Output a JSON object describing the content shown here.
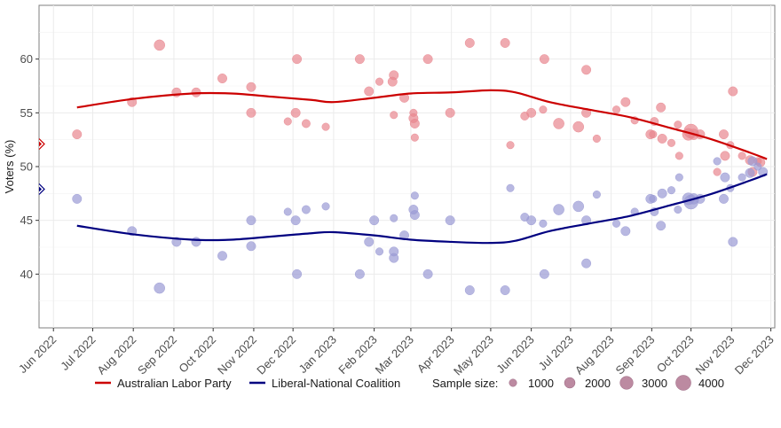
{
  "chart_data": {
    "type": "scatter",
    "title": "",
    "xlabel": "",
    "ylabel": "Voters (%)",
    "ylim": [
      35,
      65
    ],
    "xlim": [
      "2022-05-21",
      "2023-12-04"
    ],
    "grid": true,
    "y_ticks": [
      40,
      45,
      50,
      55,
      60
    ],
    "x_ticks": [
      {
        "date": "2022-06-01",
        "label": "Jun 2022"
      },
      {
        "date": "2022-07-01",
        "label": "Jul 2022"
      },
      {
        "date": "2022-08-01",
        "label": "Aug 2022"
      },
      {
        "date": "2022-09-01",
        "label": "Sep 2022"
      },
      {
        "date": "2022-10-01",
        "label": "Oct 2022"
      },
      {
        "date": "2022-11-01",
        "label": "Nov 2022"
      },
      {
        "date": "2022-12-01",
        "label": "Dec 2022"
      },
      {
        "date": "2023-01-01",
        "label": "Jan 2023"
      },
      {
        "date": "2023-02-01",
        "label": "Feb 2023"
      },
      {
        "date": "2023-03-01",
        "label": "Mar 2023"
      },
      {
        "date": "2023-04-01",
        "label": "Apr 2023"
      },
      {
        "date": "2023-05-01",
        "label": "May 2023"
      },
      {
        "date": "2023-06-01",
        "label": "Jun 2023"
      },
      {
        "date": "2023-07-01",
        "label": "Jul 2023"
      },
      {
        "date": "2023-08-01",
        "label": "Aug 2023"
      },
      {
        "date": "2023-09-01",
        "label": "Sep 2023"
      },
      {
        "date": "2023-10-01",
        "label": "Oct 2023"
      },
      {
        "date": "2023-11-01",
        "label": "Nov 2023"
      },
      {
        "date": "2023-12-01",
        "label": "Dec 2023"
      }
    ],
    "election_result": [
      {
        "series": "Australian Labor Party",
        "value": 52.1
      },
      {
        "series": "Liberal-National Coalition",
        "value": 47.9
      }
    ],
    "series": [
      {
        "name": "Australian Labor Party",
        "color": "#cc0000",
        "point_color": "#e8868f",
        "points": [
          {
            "date": "2022-06-19",
            "value": 53.0,
            "n": 1500
          },
          {
            "date": "2022-07-31",
            "value": 56.0,
            "n": 1500
          },
          {
            "date": "2022-08-21",
            "value": 61.3,
            "n": 2000
          },
          {
            "date": "2022-09-03",
            "value": 56.9,
            "n": 1500
          },
          {
            "date": "2022-09-18",
            "value": 56.9,
            "n": 1500
          },
          {
            "date": "2022-10-08",
            "value": 58.2,
            "n": 1500
          },
          {
            "date": "2022-10-30",
            "value": 57.4,
            "n": 1500
          },
          {
            "date": "2022-10-30",
            "value": 55.0,
            "n": 1500
          },
          {
            "date": "2022-11-27",
            "value": 54.2,
            "n": 1000
          },
          {
            "date": "2022-12-04",
            "value": 60.0,
            "n": 1500
          },
          {
            "date": "2022-12-03",
            "value": 55.0,
            "n": 1500
          },
          {
            "date": "2022-12-11",
            "value": 54.0,
            "n": 1200
          },
          {
            "date": "2022-12-26",
            "value": 53.7,
            "n": 1000
          },
          {
            "date": "2023-01-21",
            "value": 60.0,
            "n": 1500
          },
          {
            "date": "2023-01-28",
            "value": 57.0,
            "n": 1500
          },
          {
            "date": "2023-02-05",
            "value": 57.9,
            "n": 1000
          },
          {
            "date": "2023-02-16",
            "value": 58.5,
            "n": 1500
          },
          {
            "date": "2023-02-15",
            "value": 57.9,
            "n": 1500
          },
          {
            "date": "2023-02-16",
            "value": 54.8,
            "n": 1000
          },
          {
            "date": "2023-02-24",
            "value": 56.4,
            "n": 1500
          },
          {
            "date": "2023-03-03",
            "value": 55.0,
            "n": 1000
          },
          {
            "date": "2023-03-03",
            "value": 54.5,
            "n": 1500
          },
          {
            "date": "2023-03-04",
            "value": 54.0,
            "n": 1500
          },
          {
            "date": "2023-03-04",
            "value": 52.7,
            "n": 1000
          },
          {
            "date": "2023-03-14",
            "value": 60.0,
            "n": 1500
          },
          {
            "date": "2023-03-31",
            "value": 55.0,
            "n": 1500
          },
          {
            "date": "2023-04-15",
            "value": 61.5,
            "n": 1500
          },
          {
            "date": "2023-05-12",
            "value": 61.5,
            "n": 1500
          },
          {
            "date": "2023-05-16",
            "value": 52.0,
            "n": 1000
          },
          {
            "date": "2023-05-27",
            "value": 54.7,
            "n": 1200
          },
          {
            "date": "2023-06-01",
            "value": 55.0,
            "n": 1500
          },
          {
            "date": "2023-06-10",
            "value": 55.3,
            "n": 1000
          },
          {
            "date": "2023-06-11",
            "value": 60.0,
            "n": 1500
          },
          {
            "date": "2023-06-22",
            "value": 54.0,
            "n": 2000
          },
          {
            "date": "2023-07-07",
            "value": 53.7,
            "n": 2000
          },
          {
            "date": "2023-07-13",
            "value": 59.0,
            "n": 1500
          },
          {
            "date": "2023-07-13",
            "value": 55.0,
            "n": 1500
          },
          {
            "date": "2023-07-21",
            "value": 52.6,
            "n": 1000
          },
          {
            "date": "2023-08-05",
            "value": 55.3,
            "n": 1000
          },
          {
            "date": "2023-08-12",
            "value": 56.0,
            "n": 1500
          },
          {
            "date": "2023-08-19",
            "value": 54.3,
            "n": 1000
          },
          {
            "date": "2023-08-31",
            "value": 53.0,
            "n": 1500
          },
          {
            "date": "2023-09-02",
            "value": 53.0,
            "n": 1000
          },
          {
            "date": "2023-09-03",
            "value": 54.2,
            "n": 1200
          },
          {
            "date": "2023-09-08",
            "value": 55.5,
            "n": 1500
          },
          {
            "date": "2023-09-09",
            "value": 52.6,
            "n": 1500
          },
          {
            "date": "2023-09-16",
            "value": 52.2,
            "n": 1000
          },
          {
            "date": "2023-09-21",
            "value": 53.9,
            "n": 1000
          },
          {
            "date": "2023-09-22",
            "value": 51.0,
            "n": 1000
          },
          {
            "date": "2023-09-29",
            "value": 53.0,
            "n": 2500
          },
          {
            "date": "2023-10-01",
            "value": 53.3,
            "n": 3500
          },
          {
            "date": "2023-10-03",
            "value": 53.0,
            "n": 2000
          },
          {
            "date": "2023-10-08",
            "value": 53.0,
            "n": 1500
          },
          {
            "date": "2023-10-26",
            "value": 53.0,
            "n": 1500
          },
          {
            "date": "2023-11-02",
            "value": 57.0,
            "n": 1500
          },
          {
            "date": "2023-10-31",
            "value": 52.0,
            "n": 1000
          },
          {
            "date": "2023-10-27",
            "value": 51.0,
            "n": 1500
          },
          {
            "date": "2023-11-09",
            "value": 51.0,
            "n": 1000
          },
          {
            "date": "2023-11-15",
            "value": 50.6,
            "n": 1500
          },
          {
            "date": "2023-11-21",
            "value": 50.5,
            "n": 1000
          },
          {
            "date": "2023-11-23",
            "value": 50.4,
            "n": 1500
          },
          {
            "date": "2023-10-21",
            "value": 49.5,
            "n": 1000
          },
          {
            "date": "2023-11-17",
            "value": 49.5,
            "n": 1500
          }
        ],
        "trend": [
          {
            "date": "2022-06-19",
            "value": 55.5
          },
          {
            "date": "2022-08-01",
            "value": 56.3
          },
          {
            "date": "2022-09-15",
            "value": 56.8
          },
          {
            "date": "2022-10-15",
            "value": 56.8
          },
          {
            "date": "2022-11-15",
            "value": 56.5
          },
          {
            "date": "2022-12-15",
            "value": 56.2
          },
          {
            "date": "2023-01-01",
            "value": 56.0
          },
          {
            "date": "2023-02-01",
            "value": 56.4
          },
          {
            "date": "2023-03-01",
            "value": 56.8
          },
          {
            "date": "2023-04-01",
            "value": 56.9
          },
          {
            "date": "2023-05-01",
            "value": 57.1
          },
          {
            "date": "2023-05-20",
            "value": 56.9
          },
          {
            "date": "2023-06-15",
            "value": 56.0
          },
          {
            "date": "2023-07-15",
            "value": 55.3
          },
          {
            "date": "2023-08-15",
            "value": 54.6
          },
          {
            "date": "2023-09-15",
            "value": 53.6
          },
          {
            "date": "2023-10-15",
            "value": 52.6
          },
          {
            "date": "2023-11-15",
            "value": 51.3
          },
          {
            "date": "2023-11-28",
            "value": 50.7
          }
        ]
      },
      {
        "name": "Liberal-National Coalition",
        "color": "#000080",
        "point_color": "#9a9ad4",
        "points": [
          {
            "date": "2022-06-19",
            "value": 47.0,
            "n": 1500
          },
          {
            "date": "2022-07-31",
            "value": 44.0,
            "n": 1500
          },
          {
            "date": "2022-08-21",
            "value": 38.7,
            "n": 2000
          },
          {
            "date": "2022-09-03",
            "value": 43.0,
            "n": 1500
          },
          {
            "date": "2022-09-18",
            "value": 43.0,
            "n": 1500
          },
          {
            "date": "2022-10-08",
            "value": 41.7,
            "n": 1500
          },
          {
            "date": "2022-10-30",
            "value": 45.0,
            "n": 1500
          },
          {
            "date": "2022-10-30",
            "value": 42.6,
            "n": 1500
          },
          {
            "date": "2022-11-27",
            "value": 45.8,
            "n": 1000
          },
          {
            "date": "2022-12-03",
            "value": 45.0,
            "n": 1500
          },
          {
            "date": "2022-12-04",
            "value": 40.0,
            "n": 1500
          },
          {
            "date": "2022-12-11",
            "value": 46.0,
            "n": 1200
          },
          {
            "date": "2022-12-26",
            "value": 46.3,
            "n": 1000
          },
          {
            "date": "2023-01-21",
            "value": 40.0,
            "n": 1500
          },
          {
            "date": "2023-01-28",
            "value": 43.0,
            "n": 1500
          },
          {
            "date": "2023-02-01",
            "value": 45.0,
            "n": 1500
          },
          {
            "date": "2023-02-05",
            "value": 42.1,
            "n": 1000
          },
          {
            "date": "2023-02-16",
            "value": 45.2,
            "n": 1000
          },
          {
            "date": "2023-02-16",
            "value": 42.1,
            "n": 1500
          },
          {
            "date": "2023-02-16",
            "value": 41.5,
            "n": 1500
          },
          {
            "date": "2023-02-24",
            "value": 43.6,
            "n": 1500
          },
          {
            "date": "2023-03-03",
            "value": 46.0,
            "n": 1500
          },
          {
            "date": "2023-03-04",
            "value": 45.5,
            "n": 1500
          },
          {
            "date": "2023-03-04",
            "value": 47.3,
            "n": 1000
          },
          {
            "date": "2023-03-14",
            "value": 40.0,
            "n": 1500
          },
          {
            "date": "2023-03-31",
            "value": 45.0,
            "n": 1500
          },
          {
            "date": "2023-04-15",
            "value": 38.5,
            "n": 1500
          },
          {
            "date": "2023-05-12",
            "value": 38.5,
            "n": 1500
          },
          {
            "date": "2023-05-16",
            "value": 48.0,
            "n": 1000
          },
          {
            "date": "2023-05-27",
            "value": 45.3,
            "n": 1200
          },
          {
            "date": "2023-06-01",
            "value": 45.0,
            "n": 1500
          },
          {
            "date": "2023-06-10",
            "value": 44.7,
            "n": 1000
          },
          {
            "date": "2023-06-11",
            "value": 40.0,
            "n": 1500
          },
          {
            "date": "2023-06-22",
            "value": 46.0,
            "n": 2000
          },
          {
            "date": "2023-07-07",
            "value": 46.3,
            "n": 2000
          },
          {
            "date": "2023-07-13",
            "value": 45.0,
            "n": 1500
          },
          {
            "date": "2023-07-13",
            "value": 41.0,
            "n": 1500
          },
          {
            "date": "2023-07-21",
            "value": 47.4,
            "n": 1000
          },
          {
            "date": "2023-08-05",
            "value": 44.7,
            "n": 1000
          },
          {
            "date": "2023-08-12",
            "value": 44.0,
            "n": 1500
          },
          {
            "date": "2023-08-19",
            "value": 45.8,
            "n": 1000
          },
          {
            "date": "2023-08-31",
            "value": 47.0,
            "n": 1500
          },
          {
            "date": "2023-09-02",
            "value": 47.0,
            "n": 1000
          },
          {
            "date": "2023-09-03",
            "value": 45.8,
            "n": 1200
          },
          {
            "date": "2023-09-08",
            "value": 44.5,
            "n": 1500
          },
          {
            "date": "2023-09-09",
            "value": 47.5,
            "n": 1500
          },
          {
            "date": "2023-09-16",
            "value": 47.8,
            "n": 1000
          },
          {
            "date": "2023-09-21",
            "value": 46.0,
            "n": 1000
          },
          {
            "date": "2023-09-22",
            "value": 49.0,
            "n": 1000
          },
          {
            "date": "2023-09-29",
            "value": 47.0,
            "n": 2500
          },
          {
            "date": "2023-10-01",
            "value": 46.7,
            "n": 3500
          },
          {
            "date": "2023-10-03",
            "value": 47.0,
            "n": 2000
          },
          {
            "date": "2023-10-08",
            "value": 47.0,
            "n": 1500
          },
          {
            "date": "2023-10-21",
            "value": 50.5,
            "n": 1000
          },
          {
            "date": "2023-10-26",
            "value": 47.0,
            "n": 1500
          },
          {
            "date": "2023-11-02",
            "value": 43.0,
            "n": 1500
          },
          {
            "date": "2023-10-31",
            "value": 48.0,
            "n": 1000
          },
          {
            "date": "2023-10-27",
            "value": 49.0,
            "n": 1500
          },
          {
            "date": "2023-11-09",
            "value": 49.0,
            "n": 1000
          },
          {
            "date": "2023-11-15",
            "value": 49.4,
            "n": 1500
          },
          {
            "date": "2023-11-21",
            "value": 50.0,
            "n": 1000
          },
          {
            "date": "2023-11-17",
            "value": 50.5,
            "n": 1500
          },
          {
            "date": "2023-11-25",
            "value": 49.5,
            "n": 1500
          }
        ],
        "trend": [
          {
            "date": "2022-06-19",
            "value": 44.5
          },
          {
            "date": "2022-08-01",
            "value": 43.7
          },
          {
            "date": "2022-09-15",
            "value": 43.2
          },
          {
            "date": "2022-10-15",
            "value": 43.2
          },
          {
            "date": "2022-11-15",
            "value": 43.5
          },
          {
            "date": "2022-12-15",
            "value": 43.8
          },
          {
            "date": "2023-01-01",
            "value": 43.9
          },
          {
            "date": "2023-02-01",
            "value": 43.6
          },
          {
            "date": "2023-03-01",
            "value": 43.2
          },
          {
            "date": "2023-04-01",
            "value": 43.0
          },
          {
            "date": "2023-05-01",
            "value": 42.9
          },
          {
            "date": "2023-05-20",
            "value": 43.1
          },
          {
            "date": "2023-06-15",
            "value": 44.0
          },
          {
            "date": "2023-07-15",
            "value": 44.7
          },
          {
            "date": "2023-08-15",
            "value": 45.4
          },
          {
            "date": "2023-09-15",
            "value": 46.4
          },
          {
            "date": "2023-10-15",
            "value": 47.4
          },
          {
            "date": "2023-11-15",
            "value": 48.7
          },
          {
            "date": "2023-11-28",
            "value": 49.3
          }
        ]
      }
    ],
    "legend": {
      "placement": "bottom",
      "items": [
        {
          "label": "Australian Labor Party",
          "color": "#cc0000"
        },
        {
          "label": "Liberal-National Coalition",
          "color": "#000080"
        }
      ],
      "size_title": "Sample size:",
      "size_color": "#b07590",
      "size_items": [
        {
          "label": "1000",
          "n": 1000
        },
        {
          "label": "2000",
          "n": 2000
        },
        {
          "label": "3000",
          "n": 3000
        },
        {
          "label": "4000",
          "n": 4000
        }
      ]
    }
  }
}
